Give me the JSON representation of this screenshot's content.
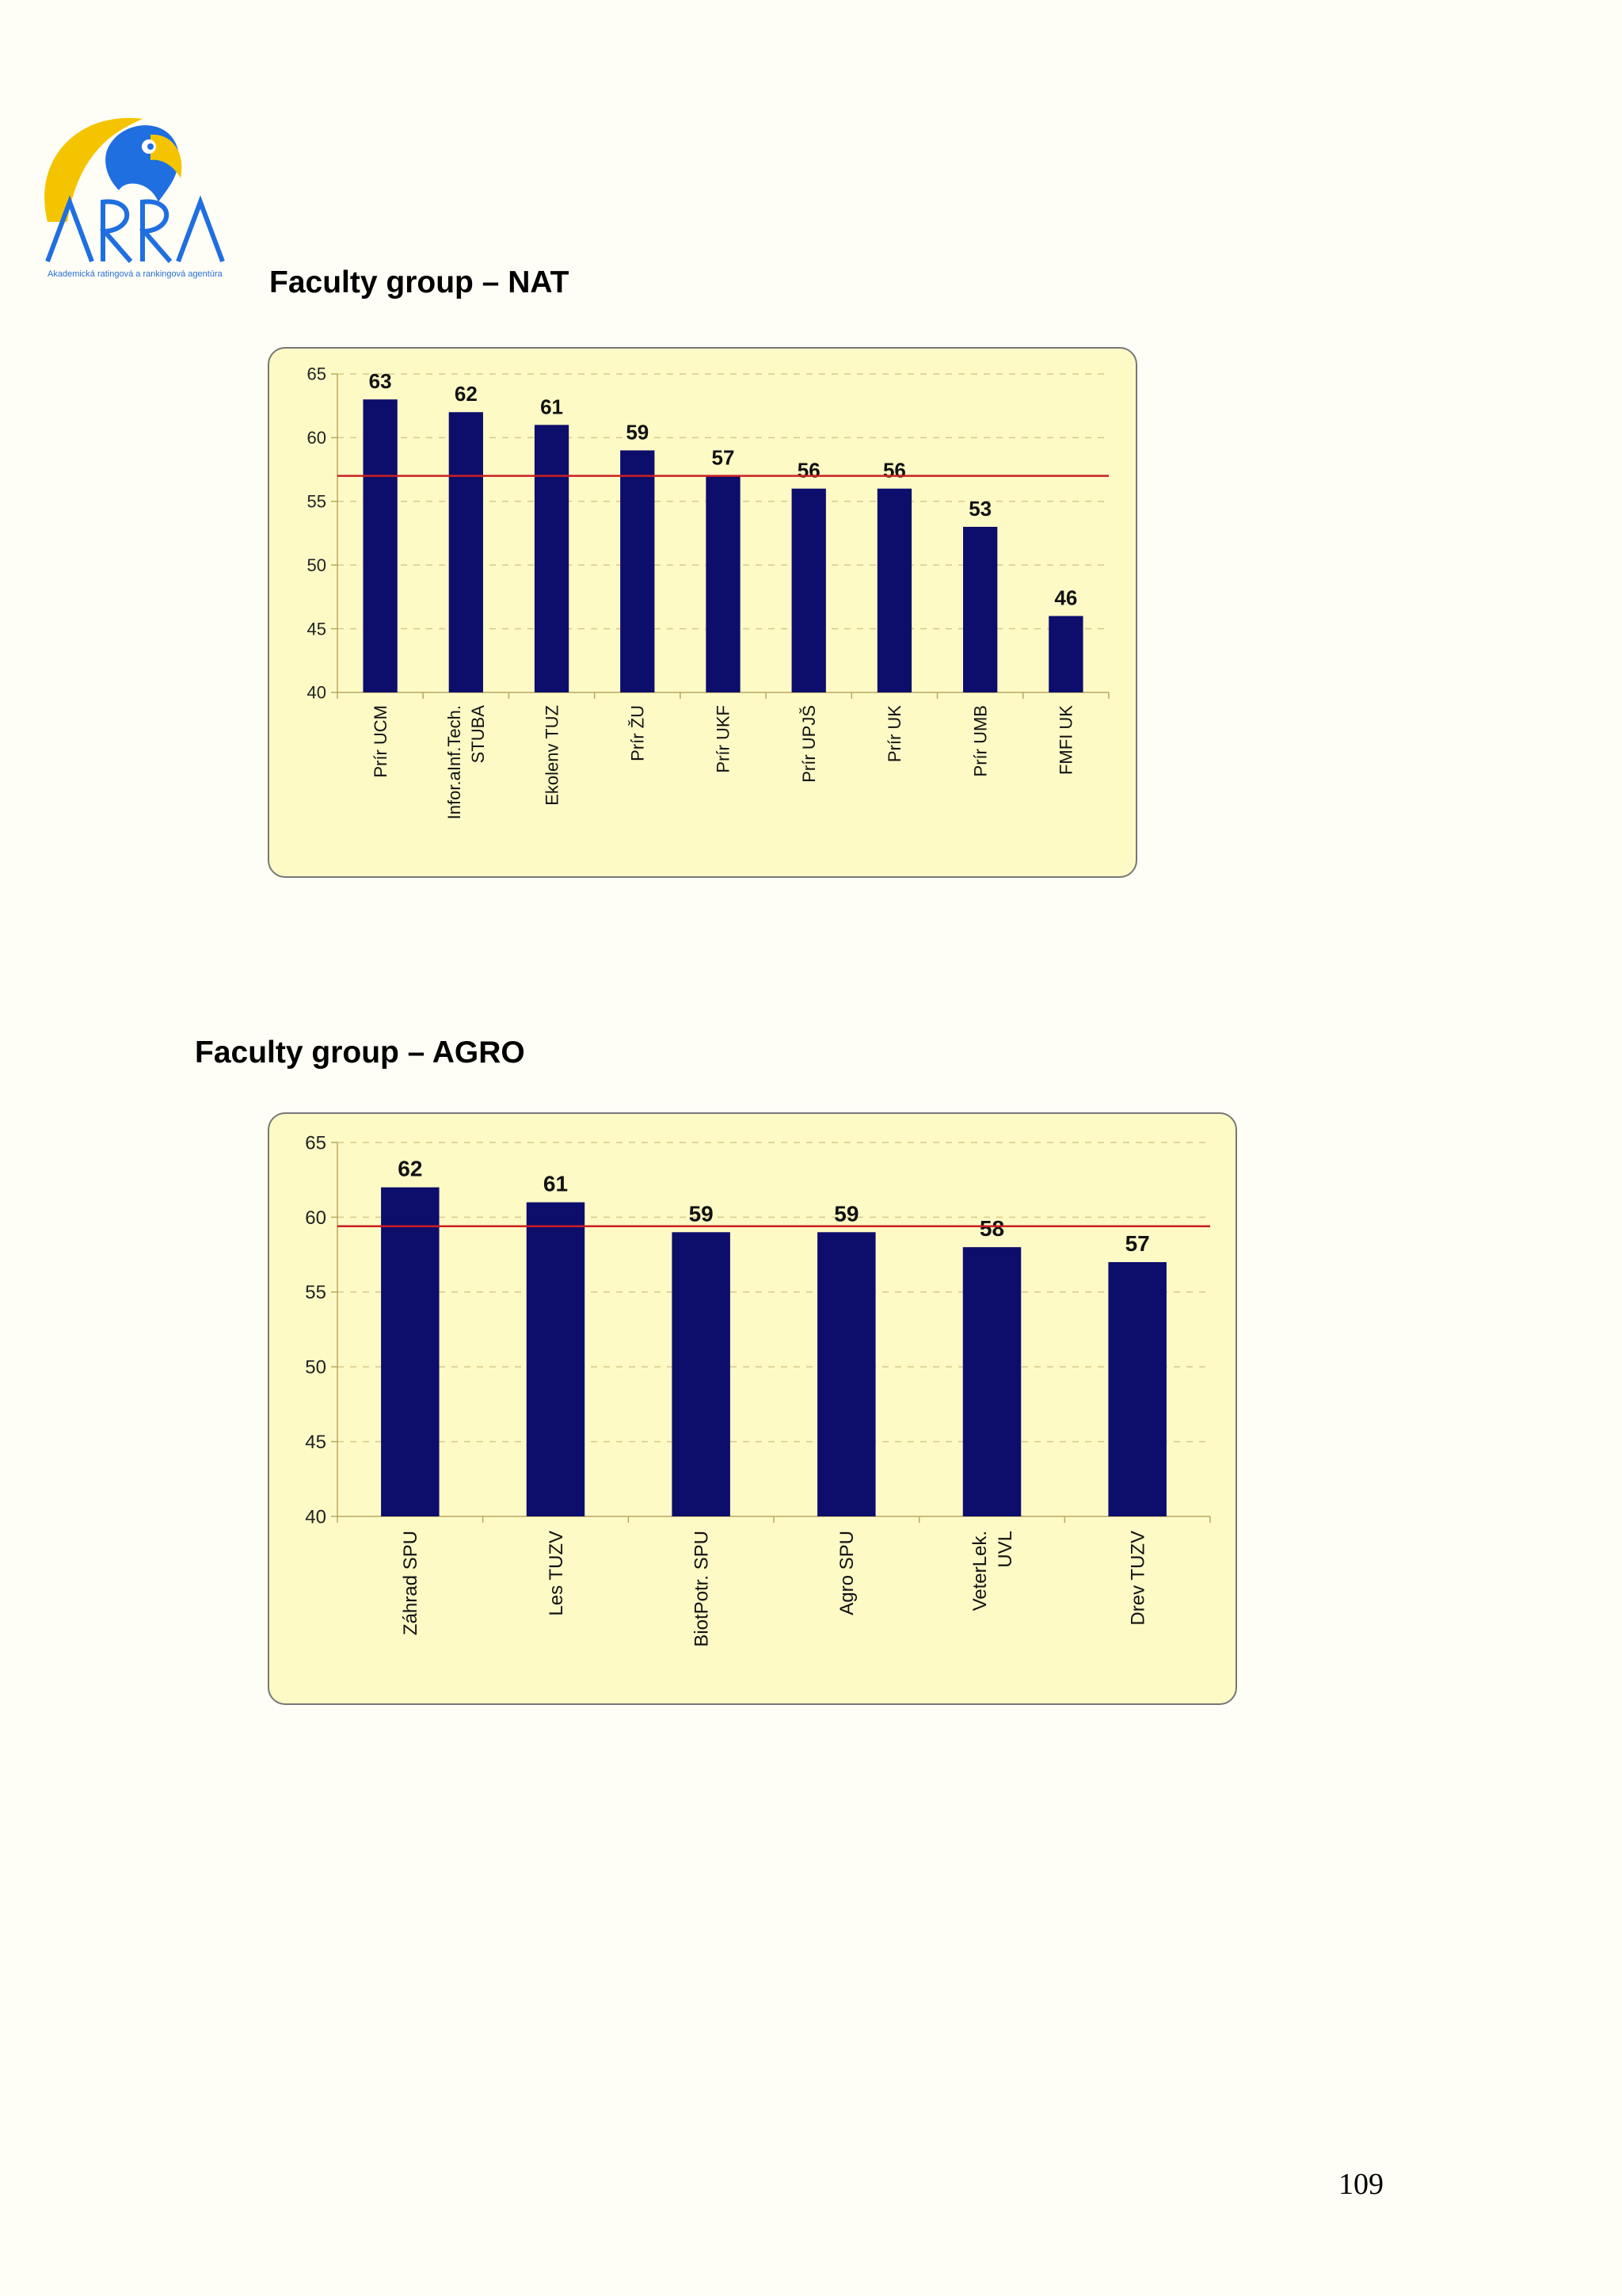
{
  "logo": {
    "wordmark": "ARRA",
    "tagline": "Akademická ratingová a rankingová agentúra"
  },
  "charts": [
    {
      "heading": "Faculty group – NAT",
      "chart_data": {
        "type": "bar",
        "categories": [
          "Prír UCM",
          "Infor.aInf.Tech. STUBA",
          "Ekolenv TUZ",
          "Prír ŽU",
          "Prír UKF",
          "Prír UPJŠ",
          "Prír UK",
          "Prír UMB",
          "FMFI UK"
        ],
        "category_lines": [
          [
            "Prír UCM"
          ],
          [
            "Infor.aInf.Tech.",
            "STUBA"
          ],
          [
            "Ekolenv TUZ"
          ],
          [
            "Prír ŽU"
          ],
          [
            "Prír UKF"
          ],
          [
            "Prír UPJŠ"
          ],
          [
            "Prír UK"
          ],
          [
            "Prír UMB"
          ],
          [
            "FMFI UK"
          ]
        ],
        "values": [
          63,
          62,
          61,
          59,
          57,
          56,
          56,
          53,
          46
        ],
        "ylim": [
          40,
          65
        ],
        "yticks": [
          40,
          45,
          50,
          55,
          60,
          65
        ],
        "reference_line": 57,
        "grid": true,
        "data_labels": true,
        "bar_color": "#0d0d6b",
        "reference_color": "#cc2020"
      }
    },
    {
      "heading": "Faculty group – AGRO",
      "chart_data": {
        "type": "bar",
        "categories": [
          "Záhrad SPU",
          "Les TUZV",
          "BiotPotr. SPU",
          "Agro SPU",
          "VeterLek. UVL",
          "Drev TUZV"
        ],
        "category_lines": [
          [
            "Záhrad SPU"
          ],
          [
            "Les TUZV"
          ],
          [
            "BiotPotr. SPU"
          ],
          [
            "Agro SPU"
          ],
          [
            "VeterLek.",
            "UVL"
          ],
          [
            "Drev TUZV"
          ]
        ],
        "values": [
          62,
          61,
          59,
          59,
          58,
          57
        ],
        "ylim": [
          40,
          65
        ],
        "yticks": [
          40,
          45,
          50,
          55,
          60,
          65
        ],
        "reference_line": 59.4,
        "grid": true,
        "data_labels": true,
        "bar_color": "#0d0d6b",
        "reference_color": "#cc2020"
      }
    }
  ],
  "page_number": "109"
}
